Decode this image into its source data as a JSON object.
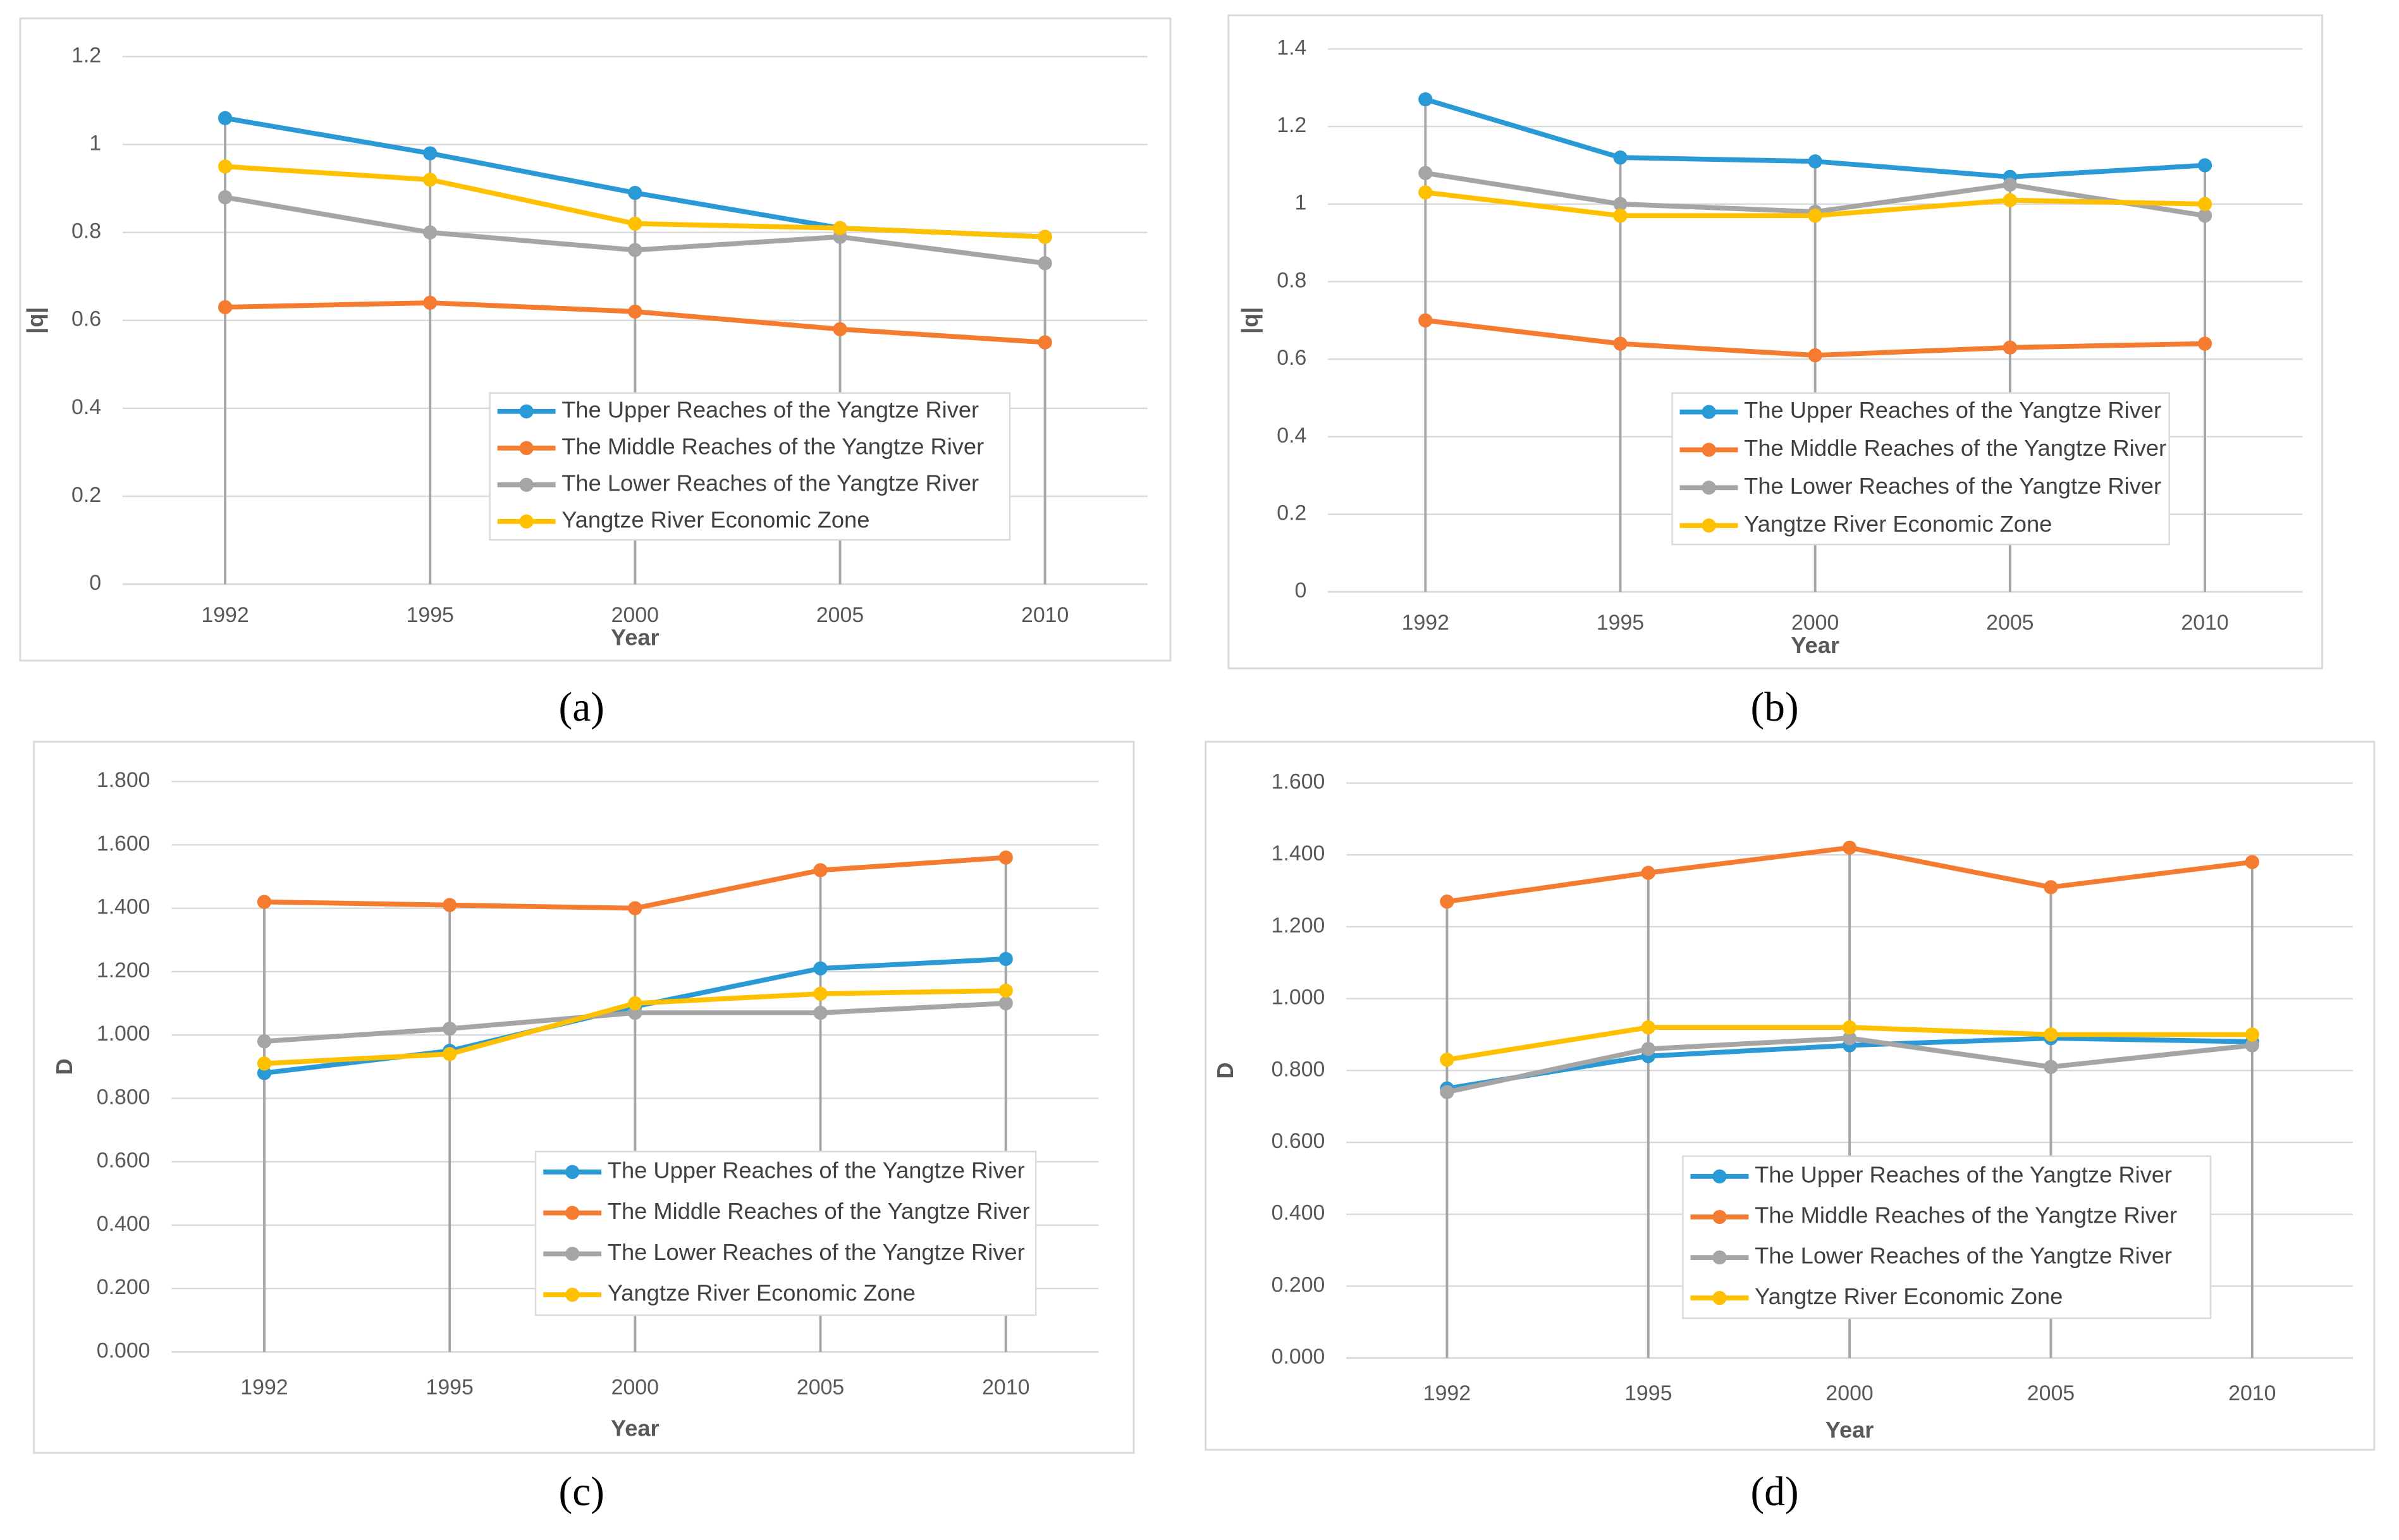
{
  "chart_data": [
    {
      "type": "line",
      "caption": "(a)",
      "x_label": "Year",
      "y_label": "|q|",
      "categories": [
        "1992",
        "1995",
        "2000",
        "2005",
        "2010"
      ],
      "series": [
        {
          "name": "The Upper Reaches of the Yangtze River",
          "color": "#2a9ad6",
          "values": [
            1.06,
            0.98,
            0.89,
            0.81,
            0.79
          ]
        },
        {
          "name": "The Middle Reaches of the Yangtze River",
          "color": "#f47b30",
          "values": [
            0.63,
            0.64,
            0.62,
            0.58,
            0.55
          ]
        },
        {
          "name": "The Lower Reaches of the Yangtze River",
          "color": "#a5a5a5",
          "values": [
            0.88,
            0.8,
            0.76,
            0.79,
            0.73
          ]
        },
        {
          "name": "Yangtze River Economic Zone",
          "color": "#ffc000",
          "values": [
            0.95,
            0.92,
            0.82,
            0.81,
            0.79
          ]
        }
      ],
      "ylim": [
        0,
        1.2
      ],
      "yticks": [
        0,
        0.2,
        0.4,
        0.6,
        0.8,
        1,
        1.2
      ],
      "grid": true,
      "drop_lines": true,
      "legend": "lower right"
    },
    {
      "type": "line",
      "caption": "(b)",
      "x_label": "Year",
      "y_label": "|q|",
      "categories": [
        "1992",
        "1995",
        "2000",
        "2005",
        "2010"
      ],
      "series": [
        {
          "name": "The Upper Reaches of the Yangtze River",
          "color": "#2a9ad6",
          "values": [
            1.27,
            1.12,
            1.11,
            1.07,
            1.1
          ]
        },
        {
          "name": "The Middle Reaches of the Yangtze River",
          "color": "#f47b30",
          "values": [
            0.7,
            0.64,
            0.61,
            0.63,
            0.64
          ]
        },
        {
          "name": "The Lower Reaches of the Yangtze River",
          "color": "#a5a5a5",
          "values": [
            1.08,
            1.0,
            0.98,
            1.05,
            0.97
          ]
        },
        {
          "name": "Yangtze River Economic Zone",
          "color": "#ffc000",
          "values": [
            1.03,
            0.97,
            0.97,
            1.01,
            1.0
          ]
        }
      ],
      "ylim": [
        0,
        1.4
      ],
      "yticks": [
        0,
        0.2,
        0.4,
        0.6,
        0.8,
        1,
        1.2,
        1.4
      ],
      "grid": true,
      "drop_lines": true,
      "legend": "lower right"
    },
    {
      "type": "line",
      "caption": "(c)",
      "x_label": "Year",
      "y_label": "D",
      "categories": [
        "1992",
        "1995",
        "2000",
        "2005",
        "2010"
      ],
      "series": [
        {
          "name": "The Upper Reaches of the Yangtze River",
          "color": "#2a9ad6",
          "values": [
            0.88,
            0.95,
            1.09,
            1.21,
            1.24
          ]
        },
        {
          "name": "The Middle Reaches of the Yangtze River",
          "color": "#f47b30",
          "values": [
            1.42,
            1.41,
            1.4,
            1.52,
            1.56
          ]
        },
        {
          "name": "The Lower Reaches of the Yangtze River",
          "color": "#a5a5a5",
          "values": [
            0.98,
            1.02,
            1.07,
            1.07,
            1.1
          ]
        },
        {
          "name": "Yangtze River Economic Zone",
          "color": "#ffc000",
          "values": [
            0.91,
            0.94,
            1.1,
            1.13,
            1.14
          ]
        }
      ],
      "ylim": [
        0,
        1.8
      ],
      "yticks": [
        {
          "value": 0,
          "label": "0.000"
        },
        {
          "value": 0.2,
          "label": "0.200"
        },
        {
          "value": 0.4,
          "label": "0.400"
        },
        {
          "value": 0.6,
          "label": "0.600"
        },
        {
          "value": 0.8,
          "label": "0.800"
        },
        {
          "value": 1,
          "label": "1.000"
        },
        {
          "value": 1.2,
          "label": "1.200"
        },
        {
          "value": 1.4,
          "label": "1.400"
        },
        {
          "value": 1.6,
          "label": "1.600"
        },
        {
          "value": 1.8,
          "label": "1.800"
        }
      ],
      "grid": true,
      "drop_lines": true,
      "legend": "lower right"
    },
    {
      "type": "line",
      "caption": "(d)",
      "x_label": "Year",
      "y_label": "D",
      "categories": [
        "1992",
        "1995",
        "2000",
        "2005",
        "2010"
      ],
      "series": [
        {
          "name": "The Upper Reaches of the Yangtze River",
          "color": "#2a9ad6",
          "values": [
            0.75,
            0.84,
            0.87,
            0.89,
            0.88
          ]
        },
        {
          "name": "The Middle Reaches of the Yangtze River",
          "color": "#f47b30",
          "values": [
            1.27,
            1.35,
            1.42,
            1.31,
            1.38
          ]
        },
        {
          "name": "The Lower Reaches of the Yangtze River",
          "color": "#a5a5a5",
          "values": [
            0.74,
            0.86,
            0.89,
            0.81,
            0.87
          ]
        },
        {
          "name": "Yangtze River Economic Zone",
          "color": "#ffc000",
          "values": [
            0.83,
            0.92,
            0.92,
            0.9,
            0.9
          ]
        }
      ],
      "ylim": [
        0,
        1.6
      ],
      "yticks": [
        {
          "value": 0,
          "label": "0.000"
        },
        {
          "value": 0.2,
          "label": "0.200"
        },
        {
          "value": 0.4,
          "label": "0.400"
        },
        {
          "value": 0.6,
          "label": "0.600"
        },
        {
          "value": 0.8,
          "label": "0.800"
        },
        {
          "value": 1,
          "label": "1.000"
        },
        {
          "value": 1.2,
          "label": "1.200"
        },
        {
          "value": 1.4,
          "label": "1.400"
        },
        {
          "value": 1.6,
          "label": "1.600"
        }
      ],
      "grid": true,
      "drop_lines": true,
      "legend": "lower right"
    }
  ]
}
